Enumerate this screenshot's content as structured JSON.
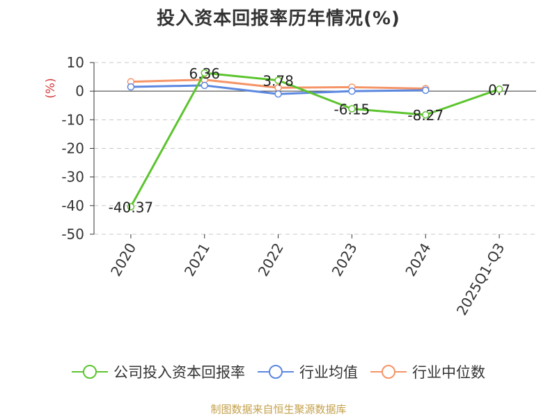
{
  "title": "投入资本回报率历年情况(%)",
  "source": "制图数据来自恒生聚源数据库",
  "colors": {
    "company": "#5cc42e",
    "avg": "#5b87e0",
    "median": "#f59467",
    "unit": "#d63a3a"
  },
  "chart_data": {
    "type": "line",
    "title": "投入资本回报率历年情况(%)",
    "ylabel": "(%)",
    "xlabel": "",
    "ylim": [
      -50,
      10
    ],
    "yticks": [
      "10",
      "0",
      "-10",
      "-20",
      "-30",
      "-40",
      "-50"
    ],
    "grid": true,
    "legend_position": "bottom",
    "categories": [
      "2020",
      "2021",
      "2022",
      "2023",
      "2024",
      "2025Q1-Q3"
    ],
    "series": [
      {
        "name": "公司投入资本回报率",
        "values": [
          -40.37,
          6.36,
          3.78,
          -6.15,
          -8.27,
          0.7
        ],
        "labels": [
          "-40.37",
          "6.36",
          "3.78",
          "-6.15",
          "-8.27",
          "0.7"
        ]
      },
      {
        "name": "行业均值",
        "values": [
          1.5,
          2.0,
          -1.0,
          0.0,
          0.3,
          null
        ]
      },
      {
        "name": "行业中位数",
        "values": [
          3.3,
          4.0,
          1.2,
          1.4,
          0.9,
          null
        ]
      }
    ]
  }
}
